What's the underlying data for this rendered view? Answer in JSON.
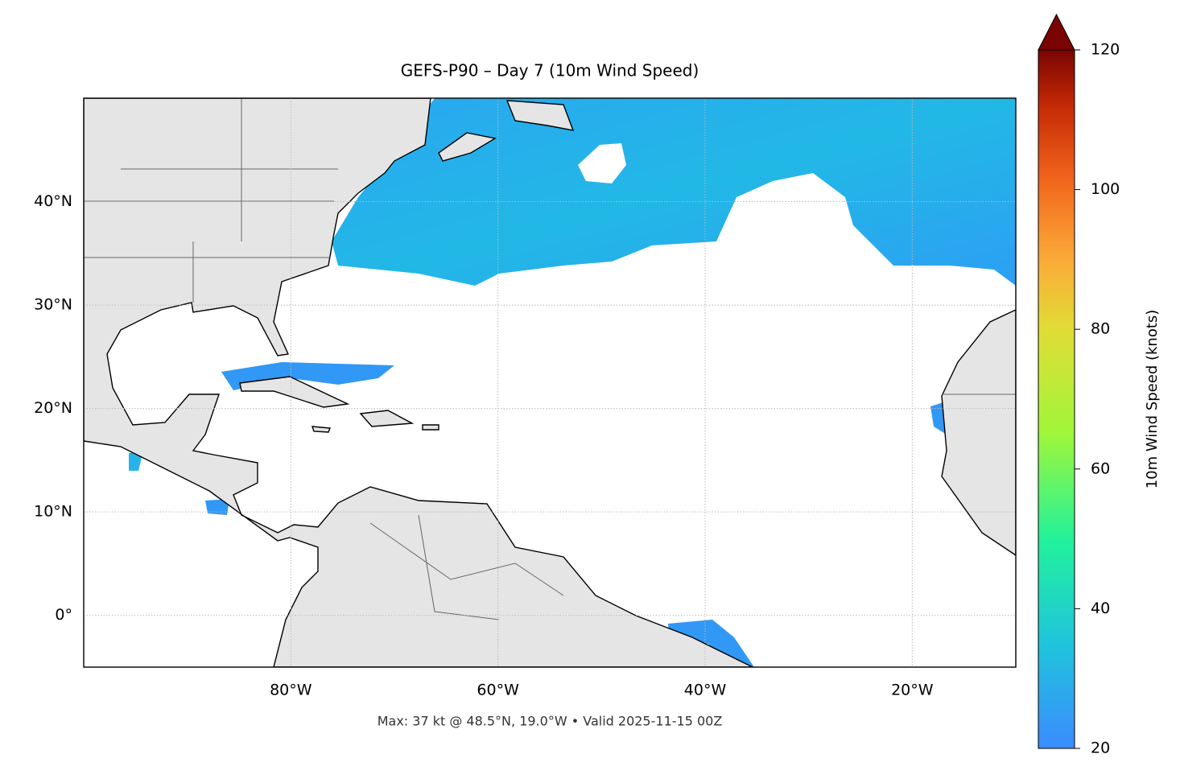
{
  "chart_data": {
    "type": "map",
    "title": "GEFS-P90 – Day 7 (10m Wind Speed)",
    "footer": "Max: 37 kt @ 48.5°N, 19.0°W • Valid 2025-11-15 00Z",
    "xlim": [
      -100,
      -10
    ],
    "ylim": [
      -5,
      50
    ],
    "xticks": [
      {
        "value": -80,
        "label": "80°W"
      },
      {
        "value": -60,
        "label": "60°W"
      },
      {
        "value": -40,
        "label": "40°W"
      },
      {
        "value": -20,
        "label": "20°W"
      }
    ],
    "yticks": [
      {
        "value": 0,
        "label": "0°"
      },
      {
        "value": 10,
        "label": "10°N"
      },
      {
        "value": 20,
        "label": "20°N"
      },
      {
        "value": 30,
        "label": "30°N"
      },
      {
        "value": 40,
        "label": "40°N"
      }
    ],
    "grid": true,
    "colorbar": {
      "label": "10m Wind Speed (knots)",
      "lim": [
        20,
        120
      ],
      "ticks": [
        20,
        40,
        60,
        80,
        100,
        120
      ]
    }
  }
}
